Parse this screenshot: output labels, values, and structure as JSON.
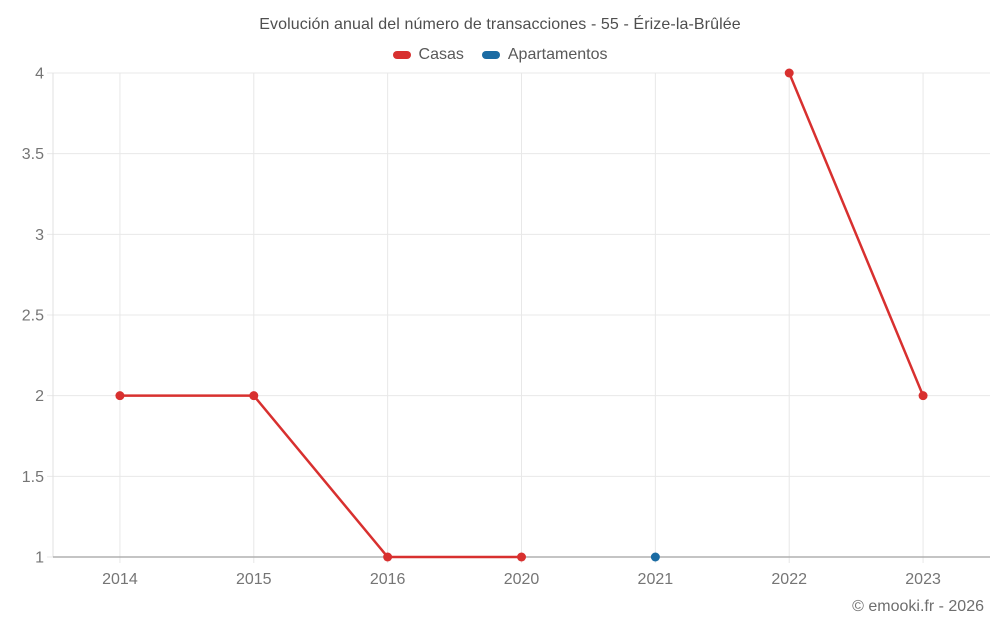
{
  "chart": {
    "title": "Evolución anual del número de transacciones - 55 - Érize-la-Brûlée",
    "footer": "© emooki.fr - 2026"
  },
  "chart_data": {
    "type": "line",
    "title": "Evolución anual del número de transacciones - 55 - Érize-la-Brûlée",
    "categories": [
      "2014",
      "2015",
      "2016",
      "2020",
      "2021",
      "2022",
      "2023"
    ],
    "series": [
      {
        "name": "Casas",
        "color": "#d8302f",
        "values": [
          2,
          2,
          1,
          1,
          null,
          4,
          2
        ]
      },
      {
        "name": "Apartamentos",
        "color": "#1a6ba3",
        "values": [
          null,
          null,
          null,
          null,
          1,
          null,
          null
        ]
      }
    ],
    "xlabel": "",
    "ylabel": "",
    "ylim": [
      1,
      4
    ],
    "yticks": [
      1,
      1.5,
      2,
      2.5,
      3,
      3.5,
      4
    ],
    "grid": true,
    "legend_position": "top",
    "colors": {
      "gridline": "#e8e8e8",
      "axis_bottom": "#b0b0b0",
      "axis_left": "#e0e0e0"
    }
  }
}
